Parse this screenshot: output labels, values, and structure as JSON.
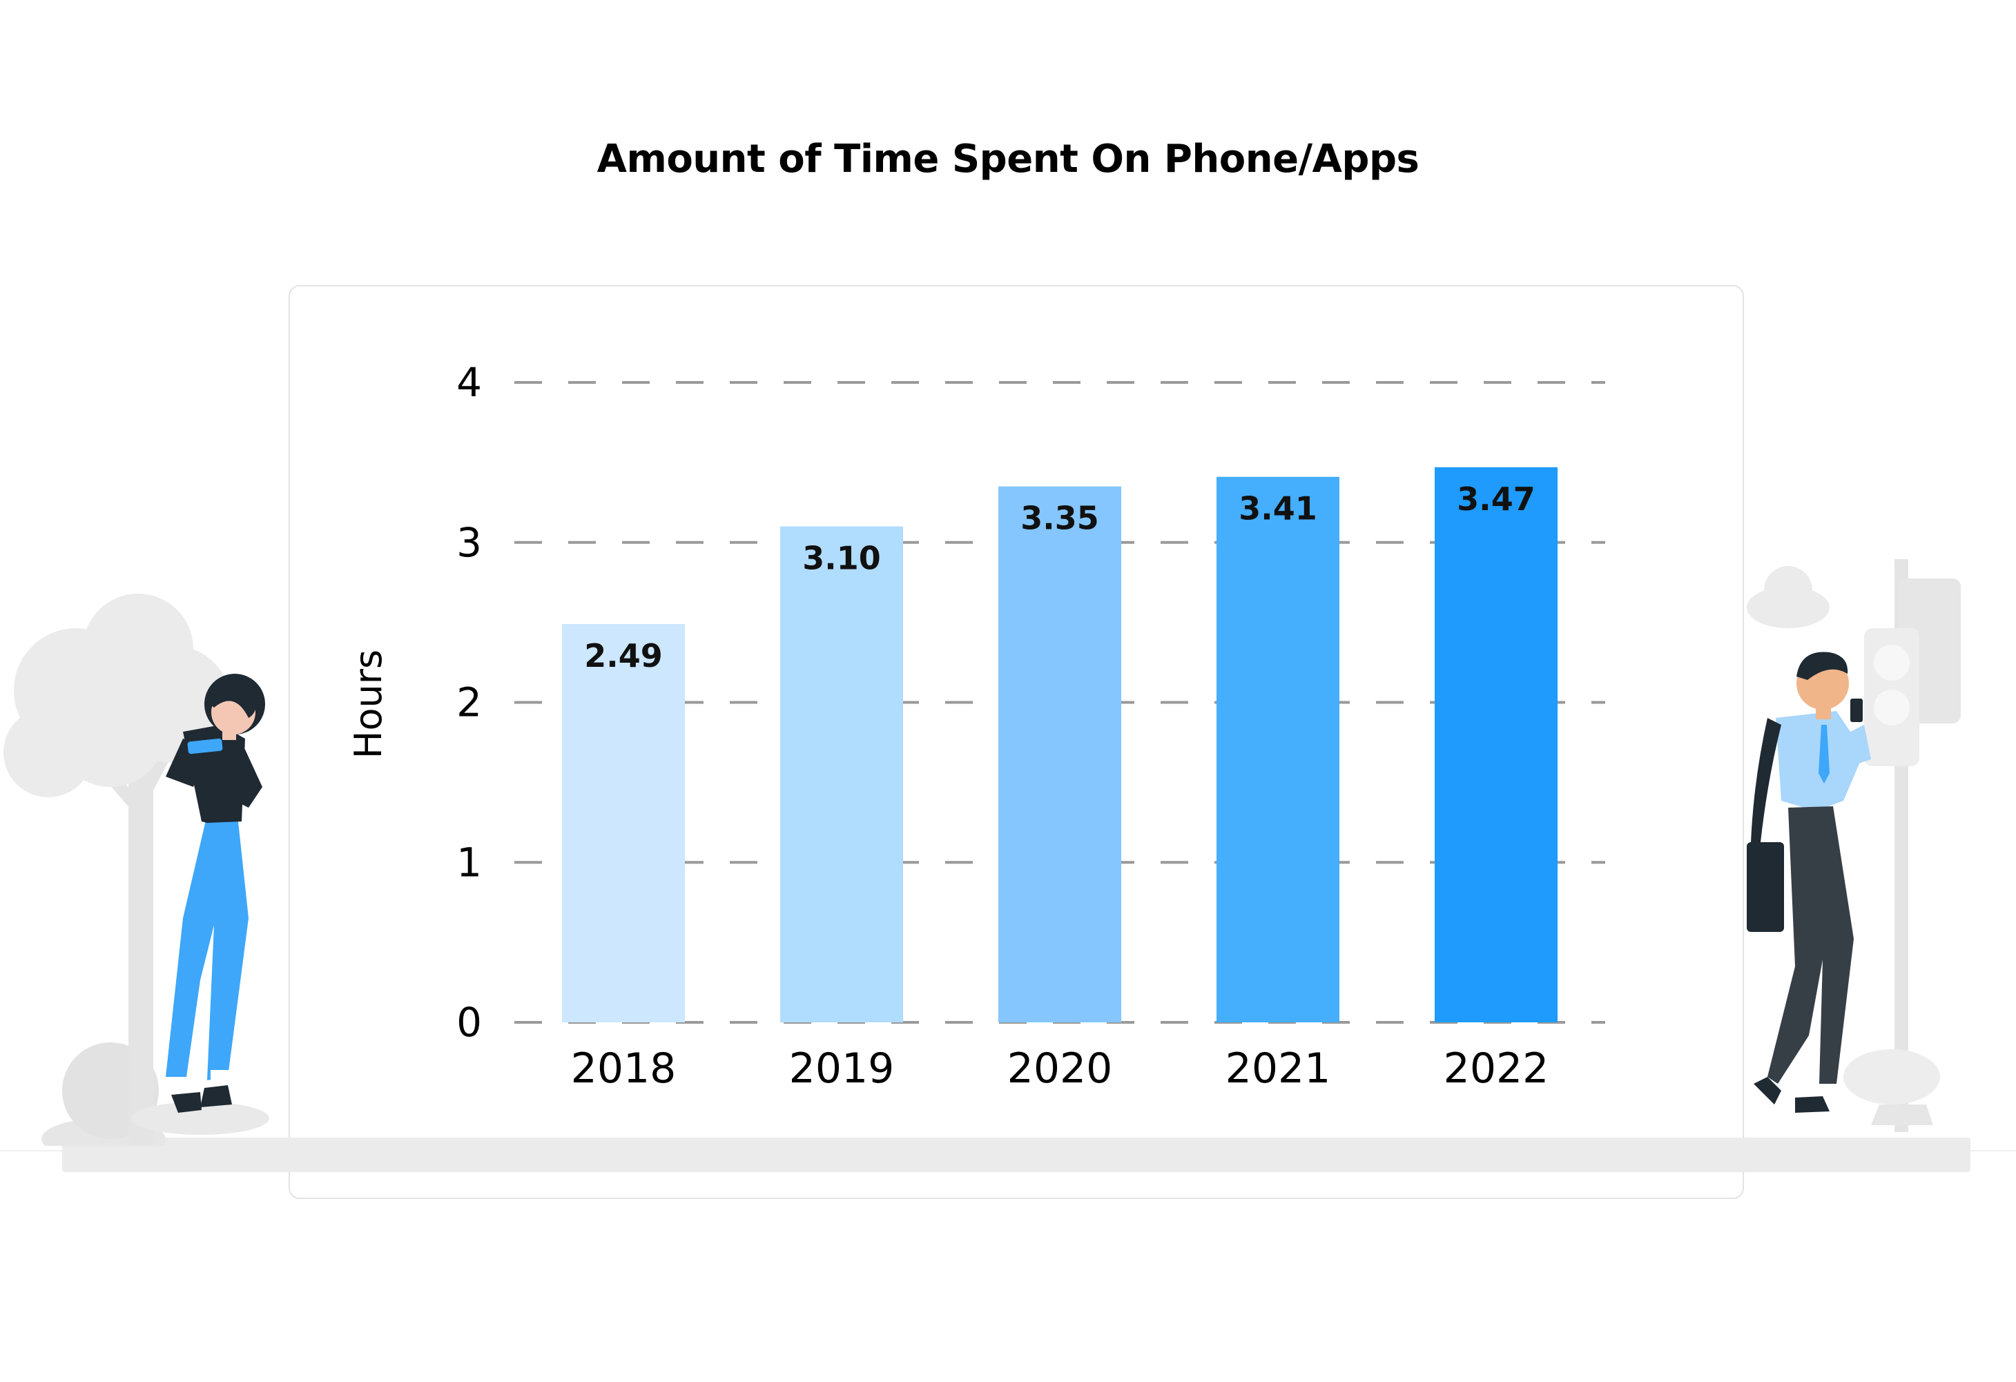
{
  "chart_data": {
    "type": "bar",
    "title": "Amount of Time Spent On Phone/Apps",
    "ylabel": "Hours",
    "xlabel": "",
    "categories": [
      "2018",
      "2019",
      "2020",
      "2021",
      "2022"
    ],
    "values": [
      2.49,
      3.1,
      3.35,
      3.41,
      3.47
    ],
    "value_labels": [
      "2.49",
      "3.10",
      "3.35",
      "3.41",
      "3.47"
    ],
    "ylim": [
      0,
      4
    ],
    "yticks": [
      "0",
      "1",
      "2",
      "3",
      "4"
    ],
    "grid": "dashed horizontal",
    "colors": [
      "#cce7fe",
      "#b0dcfd",
      "#84c6fd",
      "#45aefd",
      "#1e9bfc"
    ]
  },
  "illustrations": {
    "left": "woman-with-phone-and-tree",
    "right": "man-with-phone-and-traffic-light"
  }
}
